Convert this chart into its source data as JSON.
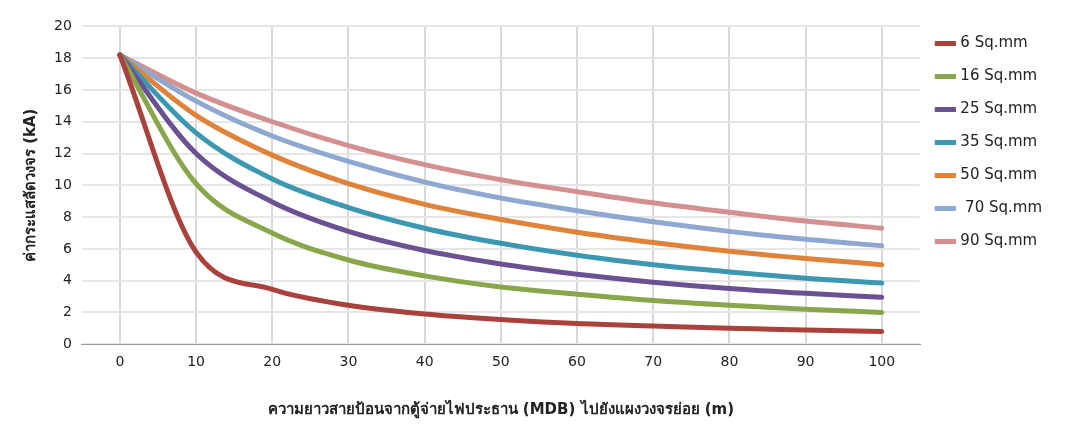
{
  "chart_data": {
    "type": "line",
    "xlabel": "ความยาวสายป้อนจากตู้จ่ายไฟประธาน (MDB) ไปยังแผงวงจรย่อย (m)",
    "ylabel": "ค่ากระแสลัดวงจร (kA)",
    "categories": [
      "0",
      "10",
      "20",
      "30",
      "40",
      "50",
      "60",
      "70",
      "80",
      "90",
      "100"
    ],
    "series": [
      {
        "name": "6 Sq.mm",
        "color": "#a9413c",
        "values": [
          18.2,
          5.8,
          3.45,
          2.45,
          1.9,
          1.55,
          1.3,
          1.15,
          1.0,
          0.9,
          0.8
        ]
      },
      {
        "name": "16 Sq.mm",
        "color": "#88a64a",
        "values": [
          18.2,
          10.1,
          7.0,
          5.3,
          4.3,
          3.6,
          3.15,
          2.75,
          2.45,
          2.2,
          2.0
        ]
      },
      {
        "name": "25 Sq.mm",
        "color": "#6b5191",
        "values": [
          18.2,
          12.0,
          8.95,
          7.1,
          5.9,
          5.05,
          4.4,
          3.9,
          3.5,
          3.2,
          2.95
        ]
      },
      {
        "name": "35 Sq.mm",
        "color": "#3c97b0",
        "values": [
          18.2,
          13.3,
          10.4,
          8.6,
          7.3,
          6.35,
          5.6,
          5.0,
          4.55,
          4.15,
          3.85
        ]
      },
      {
        "name": "50 Sq.mm",
        "color": "#e0833a",
        "values": [
          18.2,
          14.4,
          11.9,
          10.1,
          8.8,
          7.85,
          7.05,
          6.4,
          5.85,
          5.4,
          5.0
        ]
      },
      {
        "name": " 70 Sq.mm",
        "color": "#8ea8d1",
        "values": [
          18.2,
          15.3,
          13.1,
          11.5,
          10.2,
          9.2,
          8.4,
          7.7,
          7.1,
          6.6,
          6.2
        ]
      },
      {
        "name": "90 Sq.mm",
        "color": "#d49090",
        "values": [
          18.2,
          15.8,
          14.0,
          12.5,
          11.3,
          10.35,
          9.6,
          8.9,
          8.3,
          7.75,
          7.3
        ]
      }
    ],
    "ylim": [
      0,
      20
    ],
    "yticks": [
      0,
      2,
      4,
      6,
      8,
      10,
      12,
      14,
      16,
      18,
      20
    ],
    "grid": true,
    "legend": "right",
    "marker": "none",
    "line_style": "solid"
  }
}
